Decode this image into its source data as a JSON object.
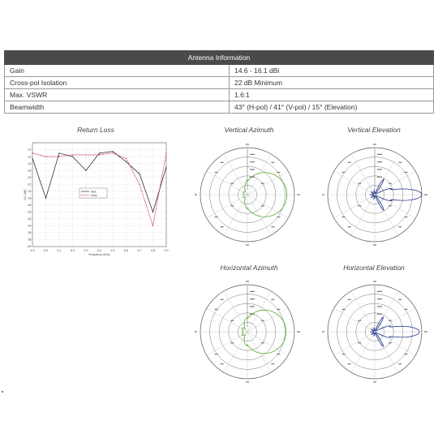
{
  "table": {
    "title": "Antenna Information",
    "rows": [
      {
        "label": "Gain",
        "value": "14.6 - 16.1 dBi"
      },
      {
        "label": "Cross-pol Isolation",
        "value": "22 dB Minimum"
      },
      {
        "label": "Max. VSWR",
        "value": "1.6:1"
      },
      {
        "label": "Beamwidth",
        "value": "43° (H-pol) / 41° (V-pol) / 15° (Elevation)"
      }
    ]
  },
  "plots": {
    "return_loss": "Return Loss",
    "vertical_azimuth": "Vertical Azimuth",
    "vertical_elevation": "Vertical Elevation",
    "horizontal_azimuth": "Horizontal Azimuth",
    "horizontal_elevation": "Horizontal Elevation"
  },
  "colors": {
    "green_trace": "#5aa832",
    "blue_trace": "#2b3a8c",
    "rl_black": "#333333",
    "rl_red": "#cc3355"
  },
  "chart_data": {
    "type": "line",
    "title": "Return Loss",
    "xlabel": "Frequency (GHz)",
    "ylabel": "S11 (dB)",
    "x": [
      4.9,
      5.0,
      5.1,
      5.2,
      5.3,
      5.4,
      5.5,
      5.6,
      5.7,
      5.8,
      5.9
    ],
    "xlim": [
      4.9,
      5.9
    ],
    "ylim": [
      -40,
      -10
    ],
    "yticks": [
      -12,
      -14,
      -16,
      -18,
      -20,
      -22,
      -24,
      -26,
      -28,
      -30,
      -32,
      -34,
      -36,
      -38,
      -40
    ],
    "legend": [
      "Vert",
      "Horz"
    ],
    "series": [
      {
        "name": "Vert",
        "values": [
          -14.5,
          -26,
          -13,
          -14,
          -18,
          -13,
          -12.5,
          -15.5,
          -19,
          -30,
          -17
        ]
      },
      {
        "name": "Horz",
        "values": [
          -13,
          -14,
          -14,
          -13.5,
          -13.5,
          -13.5,
          -13,
          -14.5,
          -22,
          -34,
          -13
        ]
      }
    ]
  }
}
